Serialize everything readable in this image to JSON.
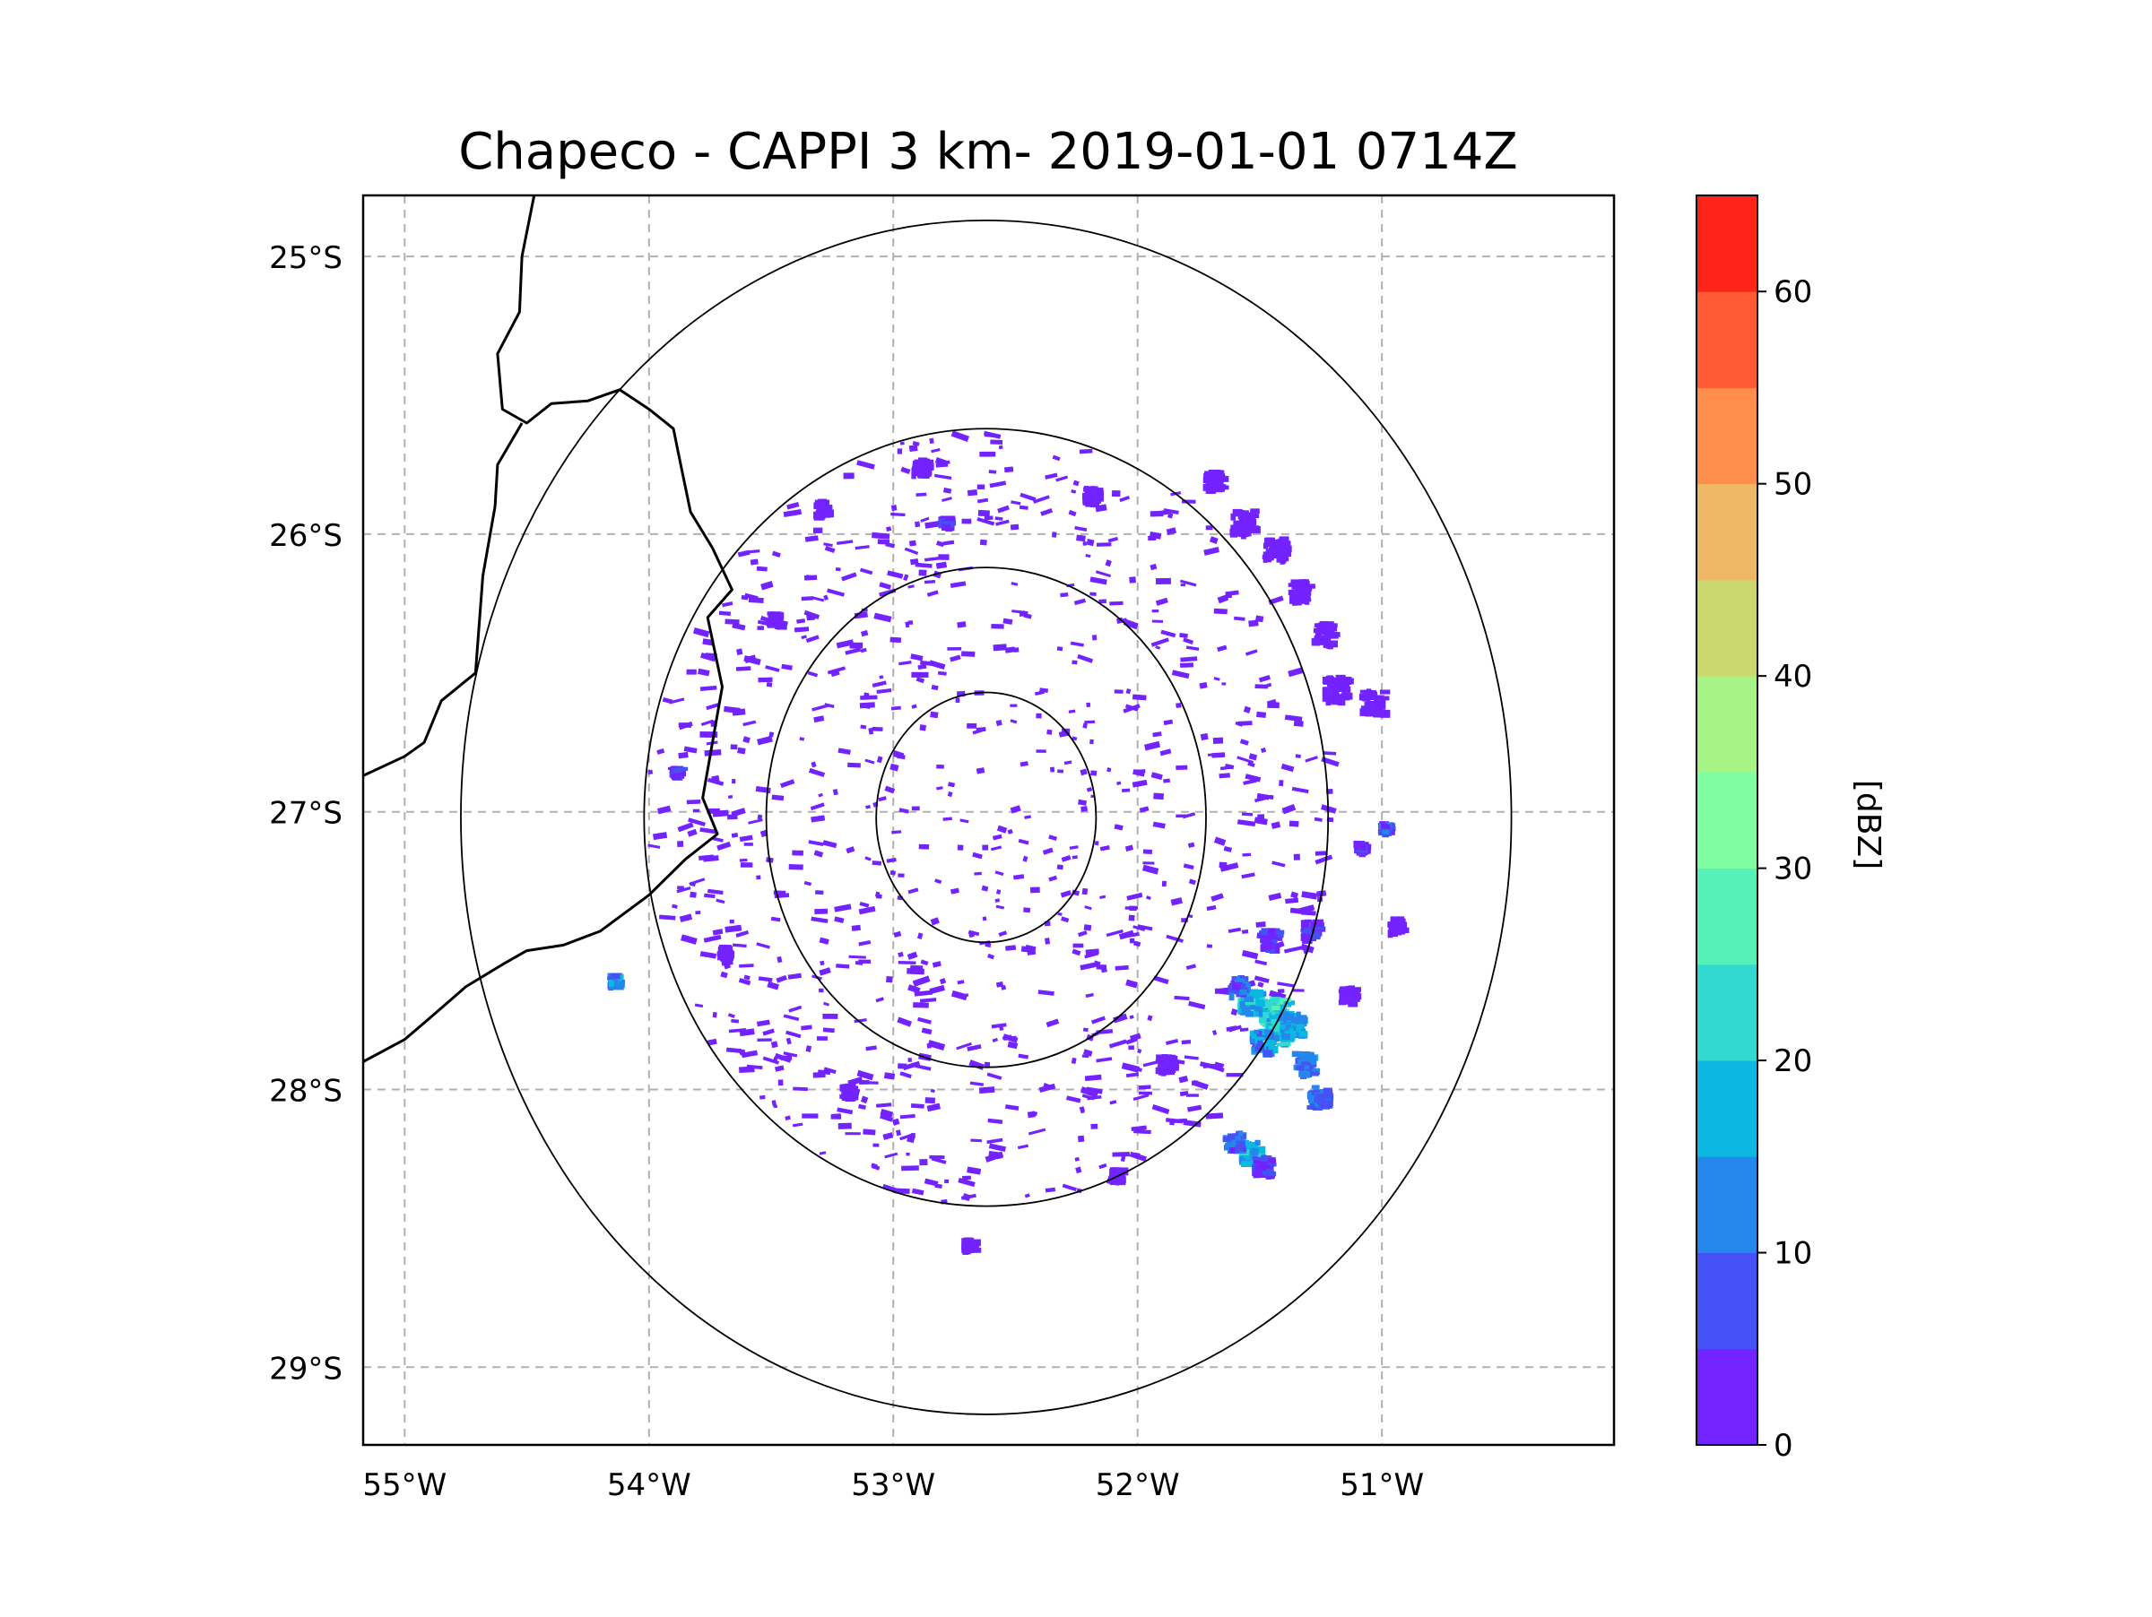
{
  "title": "Chapeco - CAPPI 3 km- 2019-01-01 0714Z",
  "map": {
    "lon_range": [
      -55.17,
      -50.05
    ],
    "lat_range": [
      -29.28,
      -24.78
    ],
    "radar_center": {
      "lon": -52.62,
      "lat": -27.02
    },
    "range_rings_deg": [
      0.45,
      0.9,
      1.4,
      2.15
    ],
    "lat_ticks": [
      {
        "value": -25,
        "label": "25°S"
      },
      {
        "value": -26,
        "label": "26°S"
      },
      {
        "value": -27,
        "label": "27°S"
      },
      {
        "value": -28,
        "label": "28°S"
      },
      {
        "value": -29,
        "label": "29°S"
      }
    ],
    "lon_ticks": [
      {
        "value": -55,
        "label": "55°W"
      },
      {
        "value": -54,
        "label": "54°W"
      },
      {
        "value": -53,
        "label": "53°W"
      },
      {
        "value": -52,
        "label": "52°W"
      },
      {
        "value": -51,
        "label": "51°W"
      }
    ],
    "gridlines": "dashed",
    "borders": [
      [
        [
          -54.47,
          -24.78
        ],
        [
          -54.52,
          -25.0
        ],
        [
          -54.53,
          -25.2
        ],
        [
          -54.62,
          -25.35
        ],
        [
          -54.6,
          -25.55
        ],
        [
          -54.5,
          -25.6
        ],
        [
          -54.4,
          -25.53
        ],
        [
          -54.25,
          -25.52
        ],
        [
          -54.12,
          -25.48
        ],
        [
          -54.0,
          -25.55
        ],
        [
          -53.9,
          -25.62
        ],
        [
          -53.87,
          -25.75
        ],
        [
          -53.83,
          -25.92
        ],
        [
          -53.74,
          -26.05
        ],
        [
          -53.66,
          -26.2
        ],
        [
          -53.76,
          -26.3
        ],
        [
          -53.7,
          -26.55
        ],
        [
          -53.73,
          -26.7
        ],
        [
          -53.78,
          -26.95
        ],
        [
          -53.72,
          -27.08
        ],
        [
          -53.85,
          -27.17
        ],
        [
          -54.0,
          -27.3
        ],
        [
          -54.2,
          -27.43
        ],
        [
          -54.35,
          -27.48
        ],
        [
          -54.5,
          -27.5
        ],
        [
          -54.6,
          -27.55
        ],
        [
          -54.75,
          -27.63
        ],
        [
          -54.88,
          -27.73
        ],
        [
          -55.0,
          -27.82
        ],
        [
          -55.17,
          -27.9
        ]
      ],
      [
        [
          -54.52,
          -25.6
        ],
        [
          -54.62,
          -25.75
        ],
        [
          -54.63,
          -25.9
        ],
        [
          -54.68,
          -26.15
        ],
        [
          -54.71,
          -26.5
        ],
        [
          -54.85,
          -26.6
        ],
        [
          -54.92,
          -26.75
        ],
        [
          -55.0,
          -26.8
        ],
        [
          -55.17,
          -26.87
        ]
      ]
    ]
  },
  "chart_data": {
    "type": "heatmap",
    "title": "Chapeco - CAPPI 3 km- 2019-01-01 0714Z",
    "xlabel": "",
    "ylabel": "",
    "colorbar_label": "[dBZ]",
    "colorbar_ticks": [
      0,
      10,
      20,
      30,
      40,
      50,
      60
    ],
    "value_range": [
      0,
      65
    ],
    "levels": [
      0,
      5,
      10,
      15,
      20,
      25,
      30,
      35,
      40,
      45,
      50,
      55,
      60,
      65
    ],
    "colors": [
      "#7323ff",
      "#4552f5",
      "#2586ec",
      "#0cb7e2",
      "#31d9d1",
      "#56f0b9",
      "#7efea0",
      "#a6f485",
      "#cbd86e",
      "#eeb867",
      "#ff8e4c",
      "#ff5a33",
      "#ff2419"
    ],
    "echoes": [
      {
        "lon": -51.45,
        "lat": -27.72,
        "dbz": 27,
        "size": 0.05
      },
      {
        "lon": -51.43,
        "lat": -27.78,
        "dbz": 24,
        "size": 0.05
      },
      {
        "lon": -51.55,
        "lat": -27.68,
        "dbz": 22,
        "size": 0.04
      },
      {
        "lon": -51.38,
        "lat": -27.76,
        "dbz": 20,
        "size": 0.04
      },
      {
        "lon": -51.5,
        "lat": -27.82,
        "dbz": 18,
        "size": 0.04
      },
      {
        "lon": -51.33,
        "lat": -27.9,
        "dbz": 16,
        "size": 0.035
      },
      {
        "lon": -51.27,
        "lat": -28.02,
        "dbz": 14,
        "size": 0.035
      },
      {
        "lon": -51.6,
        "lat": -27.62,
        "dbz": 12,
        "size": 0.03
      },
      {
        "lon": -51.55,
        "lat": -28.22,
        "dbz": 22,
        "size": 0.035
      },
      {
        "lon": -51.62,
        "lat": -28.18,
        "dbz": 14,
        "size": 0.03
      },
      {
        "lon": -51.5,
        "lat": -28.27,
        "dbz": 10,
        "size": 0.03
      },
      {
        "lon": -51.47,
        "lat": -27.45,
        "dbz": 10,
        "size": 0.03
      },
      {
        "lon": -51.3,
        "lat": -27.42,
        "dbz": 8,
        "size": 0.03
      },
      {
        "lon": -54.15,
        "lat": -27.6,
        "dbz": 16,
        "size": 0.02
      },
      {
        "lon": -51.58,
        "lat": -25.95,
        "dbz": 4,
        "size": 0.04
      },
      {
        "lon": -51.45,
        "lat": -26.05,
        "dbz": 4,
        "size": 0.04
      },
      {
        "lon": -51.2,
        "lat": -26.55,
        "dbz": 4,
        "size": 0.04
      },
      {
        "lon": -51.05,
        "lat": -26.6,
        "dbz": 3,
        "size": 0.04
      },
      {
        "lon": -51.35,
        "lat": -26.2,
        "dbz": 3,
        "size": 0.035
      },
      {
        "lon": -51.25,
        "lat": -26.35,
        "dbz": 3,
        "size": 0.035
      },
      {
        "lon": -51.7,
        "lat": -25.8,
        "dbz": 3,
        "size": 0.03
      },
      {
        "lon": -52.2,
        "lat": -25.85,
        "dbz": 2,
        "size": 0.025
      },
      {
        "lon": -52.9,
        "lat": -25.75,
        "dbz": 2,
        "size": 0.025
      },
      {
        "lon": -53.3,
        "lat": -25.9,
        "dbz": 2,
        "size": 0.025
      },
      {
        "lon": -53.5,
        "lat": -26.3,
        "dbz": 2,
        "size": 0.02
      },
      {
        "lon": -53.7,
        "lat": -27.5,
        "dbz": 2,
        "size": 0.02
      },
      {
        "lon": -53.2,
        "lat": -28.0,
        "dbz": 2,
        "size": 0.02
      },
      {
        "lon": -52.7,
        "lat": -28.55,
        "dbz": 2,
        "size": 0.02
      },
      {
        "lon": -52.1,
        "lat": -28.3,
        "dbz": 2,
        "size": 0.02
      },
      {
        "lon": -51.9,
        "lat": -27.9,
        "dbz": 3,
        "size": 0.025
      },
      {
        "lon": -51.15,
        "lat": -27.65,
        "dbz": 3,
        "size": 0.025
      },
      {
        "lon": -50.95,
        "lat": -27.4,
        "dbz": 3,
        "size": 0.025
      },
      {
        "lon": -51.0,
        "lat": -27.05,
        "dbz": 11,
        "size": 0.015
      },
      {
        "lon": -51.1,
        "lat": -27.12,
        "dbz": 8,
        "size": 0.015
      },
      {
        "lon": -53.9,
        "lat": -26.85,
        "dbz": 8,
        "size": 0.015
      },
      {
        "lon": -52.8,
        "lat": -25.95,
        "dbz": 10,
        "size": 0.015
      }
    ]
  }
}
